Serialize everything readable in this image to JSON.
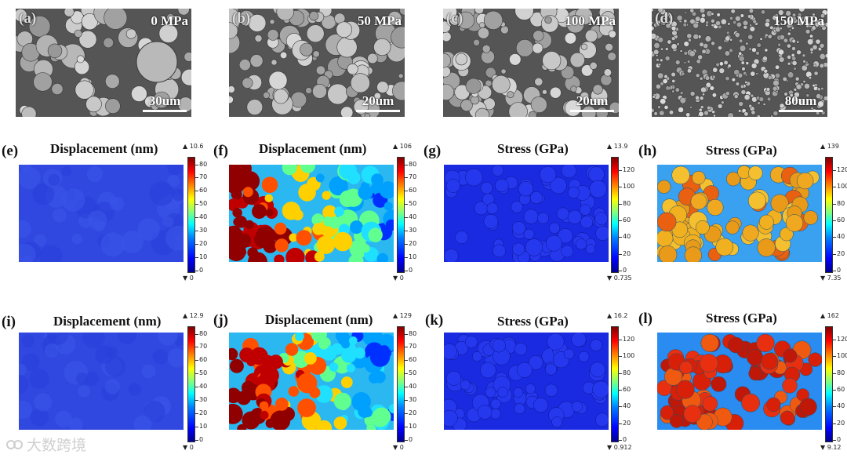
{
  "sem_panels": [
    {
      "label": "(a)",
      "pressure": "0 MPa",
      "scale": "30um"
    },
    {
      "label": "(b)",
      "pressure": "50 MPa",
      "scale": "20um"
    },
    {
      "label": "(c)",
      "pressure": "100 MPa",
      "scale": "20um"
    },
    {
      "label": "(d)",
      "pressure": "150 MPa",
      "scale": "80um"
    }
  ],
  "sim_panels": [
    {
      "label": "(e)",
      "title": "Displacement (nm)",
      "max": "▲ 10.6",
      "min": "▼ 0",
      "ticks": [
        "80",
        "70",
        "60",
        "50",
        "40",
        "30",
        "20",
        "10",
        "0"
      ]
    },
    {
      "label": "(f)",
      "title": "Displacement (nm)",
      "max": "▲ 106",
      "min": "▼ 0",
      "ticks": [
        "80",
        "70",
        "60",
        "50",
        "40",
        "30",
        "20",
        "10",
        "0"
      ]
    },
    {
      "label": "(g)",
      "title": "Stress (GPa)",
      "max": "▲ 13.9",
      "min": "▼ 0.735",
      "ticks": [
        "120",
        "100",
        "80",
        "60",
        "40",
        "20",
        "0"
      ]
    },
    {
      "label": "(h)",
      "title": "Stress (GPa)",
      "max": "▲ 139",
      "min": "▼ 7.35",
      "ticks": [
        "120",
        "100",
        "80",
        "60",
        "40",
        "20",
        "0"
      ]
    },
    {
      "label": "(i)",
      "title": "Displacement (nm)",
      "max": "▲ 12.9",
      "min": "▼ 0",
      "ticks": [
        "80",
        "70",
        "60",
        "50",
        "40",
        "30",
        "20",
        "10",
        "0"
      ]
    },
    {
      "label": "(j)",
      "title": "Displacement (nm)",
      "max": "▲ 129",
      "min": "▼ 0",
      "ticks": [
        "80",
        "70",
        "60",
        "50",
        "40",
        "30",
        "20",
        "10",
        "0"
      ]
    },
    {
      "label": "(k)",
      "title": "Stress (GPa)",
      "max": "▲ 16.2",
      "min": "▼ 0.912",
      "ticks": [
        "120",
        "100",
        "80",
        "60",
        "40",
        "20",
        "0"
      ]
    },
    {
      "label": "(l)",
      "title": "Stress (GPa)",
      "max": "▲ 162",
      "min": "▼ 9.12",
      "ticks": [
        "120",
        "100",
        "80",
        "60",
        "40",
        "20",
        "0"
      ]
    }
  ],
  "watermark": "大数跨境",
  "colors": {
    "low": "#2d3de0",
    "high": "#c81a0a",
    "mid": "#f0b020",
    "sem_bg": "#6a6a6a"
  }
}
